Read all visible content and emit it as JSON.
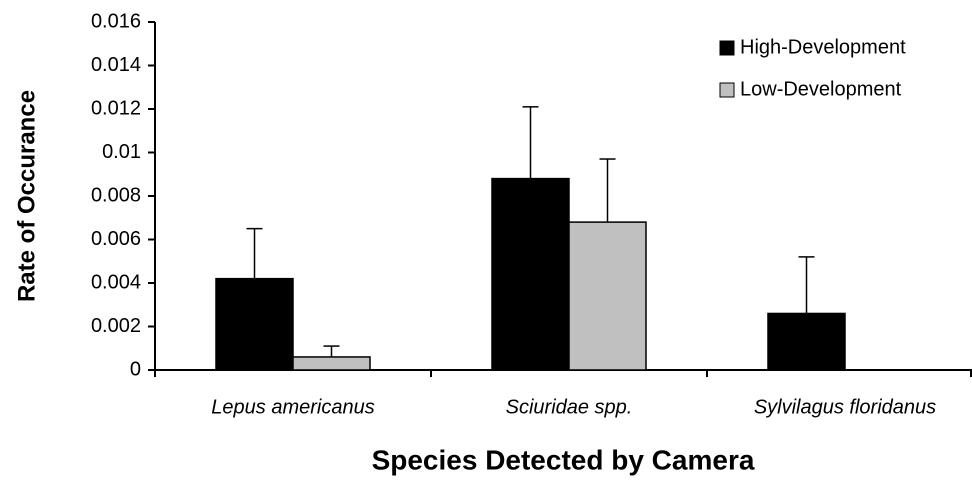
{
  "chart_data": {
    "type": "bar",
    "x_label": "Species Detected by Camera",
    "y_label": "Rate of Occurance",
    "categories": [
      "Lepus americanus",
      "Sciuridae spp.",
      "Sylvilagus floridanus"
    ],
    "series": [
      {
        "name": "High-Development",
        "color": "#000000",
        "values": [
          0.0042,
          0.0088,
          0.0026
        ],
        "errors": [
          0.0023,
          0.0033,
          0.0026
        ]
      },
      {
        "name": "Low-Development",
        "color": "#c0c0c0",
        "values": [
          0.0006,
          0.0068,
          0
        ],
        "errors": [
          0.0005,
          0.0029,
          0
        ]
      }
    ],
    "ylim": [
      0,
      0.016
    ],
    "yticks": [
      0,
      0.002,
      0.004,
      0.006,
      0.008,
      0.01,
      0.012,
      0.014,
      0.016
    ],
    "legend": "top-right"
  }
}
